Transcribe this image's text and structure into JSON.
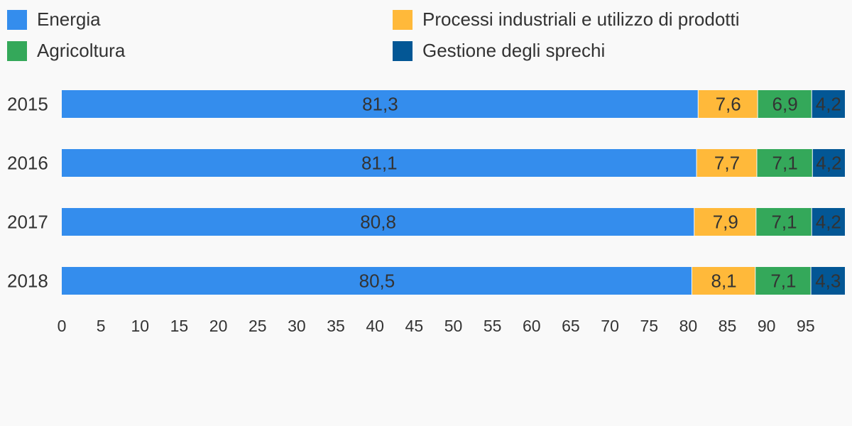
{
  "chart_data": {
    "type": "bar",
    "orientation": "horizontal",
    "stacked": true,
    "categories": [
      "2015",
      "2016",
      "2017",
      "2018"
    ],
    "series": [
      {
        "name": "Energia",
        "color": "#348ded",
        "values": [
          81.3,
          81.1,
          80.8,
          80.5
        ],
        "labels": [
          "81,3",
          "81,1",
          "80,8",
          "80,5"
        ]
      },
      {
        "name": "Processi industriali e utilizzo di prodotti",
        "color": "#ffb93a",
        "values": [
          7.6,
          7.7,
          7.9,
          8.1
        ],
        "labels": [
          "7,6",
          "7,7",
          "7,9",
          "8,1"
        ]
      },
      {
        "name": "Agricoltura",
        "color": "#34a85a",
        "values": [
          6.9,
          7.1,
          7.1,
          7.1
        ],
        "labels": [
          "6,9",
          "7,1",
          "7,1",
          "7,1"
        ]
      },
      {
        "name": "Gestione degli sprechi",
        "color": "#035795",
        "values": [
          4.2,
          4.2,
          4.2,
          4.3
        ],
        "labels": [
          "4,2",
          "4,2",
          "4,2",
          "4,3"
        ]
      }
    ],
    "x_ticks": [
      "0",
      "5",
      "10",
      "15",
      "20",
      "25",
      "30",
      "35",
      "40",
      "45",
      "50",
      "55",
      "60",
      "65",
      "70",
      "75",
      "80",
      "85",
      "90",
      "95"
    ],
    "xlim": [
      0,
      100
    ],
    "grid": false,
    "legend_position": "top"
  }
}
